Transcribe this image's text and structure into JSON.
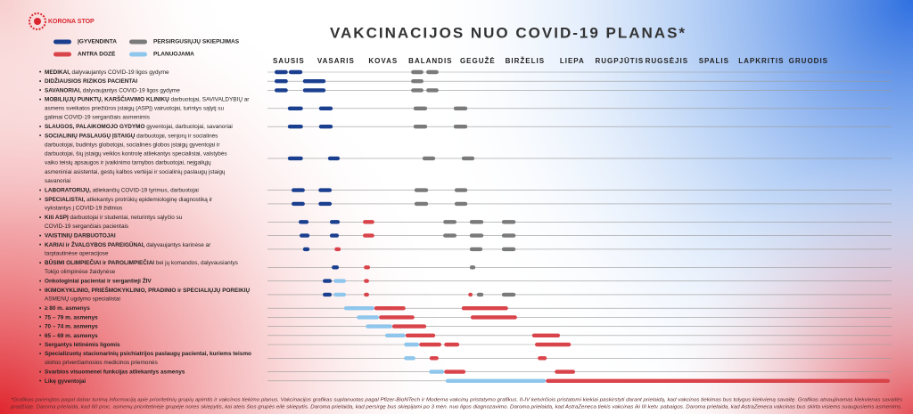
{
  "logo": "KORONA STOP",
  "title": "VAKCINACIJOS NUO COVID-19 PLANAS*",
  "legend": [
    {
      "label": "ĮGYVENDINTA",
      "color": "#1b3f8f"
    },
    {
      "label": "PERSIRGUSIŲJŲ SKIEPIJIMAS",
      "color": "#7a7a7a"
    },
    {
      "label": "ANTRA DOZĖ",
      "color": "#d9434a"
    },
    {
      "label": "PLANUOJAMA",
      "color": "#8ec6ec"
    }
  ],
  "months": [
    "SAUSIS",
    "VASARIS",
    "KOVAS",
    "BALANDIS",
    "GEGUŽĖ",
    "BIRŽELIS",
    "LIEPA",
    "RUGPJŪTIS",
    "RUGSĖJIS",
    "SPALIS",
    "LAPKRITIS",
    "GRUODIS"
  ],
  "rows": [
    {
      "bold": "MEDIKAI,",
      "text": " dalyvaujantys COVID-19 ligos gydyme",
      "bars": [
        {
          "kind": 0,
          "start": 0.15,
          "end": 0.43
        },
        {
          "kind": 0,
          "start": 0.45,
          "end": 0.74
        },
        {
          "kind": 1,
          "start": 3.04,
          "end": 3.3
        },
        {
          "kind": 1,
          "start": 3.36,
          "end": 3.62
        }
      ]
    },
    {
      "bold": "DIDŽIAUSIOS RIZIKOS PACIENTAI",
      "bars": [
        {
          "kind": 0,
          "start": 0.15,
          "end": 0.43
        },
        {
          "kind": 0,
          "start": 0.75,
          "end": 1.23
        },
        {
          "kind": 1,
          "start": 3.04,
          "end": 3.3
        }
      ]
    },
    {
      "bold": "SAVANORIAI,",
      "text": " dalyvaujantys COVID-19 ligos gydyme",
      "bars": [
        {
          "kind": 0,
          "start": 0.15,
          "end": 0.43
        },
        {
          "kind": 0,
          "start": 0.75,
          "end": 1.23
        },
        {
          "kind": 1,
          "start": 3.04,
          "end": 3.3
        },
        {
          "kind": 1,
          "start": 3.36,
          "end": 3.62
        }
      ]
    },
    {
      "bold": "MOBILIŲJŲ PUNKTŲ, KARŠČIAVIMO KLINIKŲ",
      "text": " darbuotojai, SAVIVALDYBIŲ ar",
      "more": [
        "asmens sveikatos priežiūros įstaigų (ASPĮ) vairuotojai, turintys sąlytį su",
        "galimai COVID-19 sergančiais asmenimis"
      ],
      "bars": [
        {
          "kind": 0,
          "start": 0.43,
          "end": 0.75
        },
        {
          "kind": 0,
          "start": 1.09,
          "end": 1.38
        },
        {
          "kind": 1,
          "start": 3.09,
          "end": 3.38
        },
        {
          "kind": 1,
          "start": 3.94,
          "end": 4.23
        }
      ]
    },
    {
      "bold": "SLAUGOS, PALAIKOMOJO GYDYMO",
      "text": " gyventojai, darbuotojai, savanoriai",
      "bars": [
        {
          "kind": 0,
          "start": 0.43,
          "end": 0.75
        },
        {
          "kind": 0,
          "start": 1.09,
          "end": 1.38
        },
        {
          "kind": 1,
          "start": 3.09,
          "end": 3.38
        },
        {
          "kind": 1,
          "start": 3.94,
          "end": 4.23
        }
      ]
    },
    {
      "bold": "SOCIALINIŲ PASLAUGŲ ĮSTAIGŲ",
      "text": " darbuotojai, senjorų ir socialinės",
      "more": [
        "darbuotojai, budintys globotojai, socialinės globos įstaigų gyventojai ir",
        "darbuotojai, šių įstaigų veiklos kontrolę atliekantys specialistai, valstybės",
        "vaiko teisių apsaugos ir įvaikinimo tarnybos darbuotojai, neįgaliųjų",
        "asmeniniai asistentai, gestų kalbos vertėjai ir socialinių paslaugų įstaigų",
        "savanoriai"
      ],
      "bars": [
        {
          "kind": 0,
          "start": 0.43,
          "end": 0.75
        },
        {
          "kind": 0,
          "start": 1.28,
          "end": 1.53
        },
        {
          "kind": 1,
          "start": 3.28,
          "end": 3.55
        },
        {
          "kind": 1,
          "start": 4.11,
          "end": 4.38
        }
      ]
    },
    {
      "bold": "LABORATORIJŲ,",
      "text": " atliekančių COVID-19 tyrimus, darbuotojai",
      "bars": [
        {
          "kind": 0,
          "start": 0.51,
          "end": 0.79
        },
        {
          "kind": 0,
          "start": 1.08,
          "end": 1.36
        },
        {
          "kind": 1,
          "start": 3.11,
          "end": 3.4
        },
        {
          "kind": 1,
          "start": 3.96,
          "end": 4.23
        }
      ]
    },
    {
      "bold": "SPECIALISTAI,",
      "text": " atliekantys protrūkių epidemiologinę diagnostiką ir",
      "more": [
        "vykstantys į COVID-19 židinius"
      ],
      "bars": [
        {
          "kind": 0,
          "start": 0.51,
          "end": 0.79
        },
        {
          "kind": 0,
          "start": 1.08,
          "end": 1.36
        },
        {
          "kind": 1,
          "start": 3.11,
          "end": 3.4
        },
        {
          "kind": 1,
          "start": 3.96,
          "end": 4.23
        }
      ]
    },
    {
      "bold": "Kiti ASPĮ",
      "text": " darbuotojai ir studentai, neturintys sąlyčio su",
      "more": [
        "COVID-19 sergančiais pacientais"
      ],
      "bars": [
        {
          "kind": 0,
          "start": 0.66,
          "end": 0.87
        },
        {
          "kind": 0,
          "start": 1.32,
          "end": 1.53
        },
        {
          "kind": 2,
          "start": 2.02,
          "end": 2.26
        },
        {
          "kind": 1,
          "start": 3.72,
          "end": 4.0
        },
        {
          "kind": 1,
          "start": 4.28,
          "end": 4.57
        },
        {
          "kind": 1,
          "start": 4.96,
          "end": 5.25
        }
      ]
    },
    {
      "bold": "VAISTINIŲ DARBUOTOJAI",
      "bars": [
        {
          "kind": 0,
          "start": 0.68,
          "end": 0.89
        },
        {
          "kind": 0,
          "start": 1.32,
          "end": 1.51
        },
        {
          "kind": 2,
          "start": 2.02,
          "end": 2.26
        },
        {
          "kind": 1,
          "start": 3.72,
          "end": 4.0
        },
        {
          "kind": 1,
          "start": 4.28,
          "end": 4.57
        },
        {
          "kind": 1,
          "start": 4.96,
          "end": 5.25
        }
      ]
    },
    {
      "bold": "KARIAI ir ŽVALGYBOS PAREIGŪNAI,",
      "text": " dalyvaujantys karinėse ar",
      "more": [
        "tarptautinėse operacijose"
      ],
      "bars": [
        {
          "kind": 0,
          "start": 0.75,
          "end": 0.89
        },
        {
          "kind": 2,
          "start": 1.42,
          "end": 1.55
        },
        {
          "kind": 1,
          "start": 4.28,
          "end": 4.55
        },
        {
          "kind": 1,
          "start": 4.96,
          "end": 5.25
        }
      ]
    },
    {
      "bold": "BŪSIMI OLIMPIEČIAI ir PAROLIMPIEČIAI",
      "text": " bei jų komandos, dalyvausiantys",
      "more": [
        "Tokijo olimpinėse žaidynėse"
      ],
      "bars": [
        {
          "kind": 0,
          "start": 1.36,
          "end": 1.51
        },
        {
          "kind": 2,
          "start": 2.04,
          "end": 2.17
        },
        {
          "kind": 1,
          "start": 4.28,
          "end": 4.4
        }
      ]
    },
    {
      "bold": "Onkologiniai pacientai ir sergantieji ŽIV",
      "bars": [
        {
          "kind": 0,
          "start": 1.17,
          "end": 1.36
        },
        {
          "kind": 3,
          "start": 1.4,
          "end": 1.66
        },
        {
          "kind": 2,
          "start": 2.04,
          "end": 2.15
        }
      ]
    },
    {
      "bold": "IKIMOKYKLINIO, PRIEŠMOKYKLINIO, PRADINIO ir SPECIALIŲJŲ POREIKIŲ",
      "more": [
        "ASMENŲ ugdymo specialistai"
      ],
      "bars": [
        {
          "kind": 0,
          "start": 1.17,
          "end": 1.36
        },
        {
          "kind": 3,
          "start": 1.4,
          "end": 1.66
        },
        {
          "kind": 2,
          "start": 2.04,
          "end": 2.15
        },
        {
          "kind": 2,
          "start": 4.25,
          "end": 4.34
        },
        {
          "kind": 1,
          "start": 4.43,
          "end": 4.57
        },
        {
          "kind": 1,
          "start": 4.96,
          "end": 5.25
        }
      ]
    },
    {
      "bold": "≥ 80 m. asmenys",
      "bars": [
        {
          "kind": 3,
          "start": 1.62,
          "end": 2.26
        },
        {
          "kind": 2,
          "start": 2.26,
          "end": 2.92
        },
        {
          "kind": 2,
          "start": 4.11,
          "end": 5.09
        }
      ]
    },
    {
      "bold": "75 – 79 m. asmenys",
      "bars": [
        {
          "kind": 3,
          "start": 1.89,
          "end": 2.36
        },
        {
          "kind": 2,
          "start": 2.36,
          "end": 3.11
        },
        {
          "kind": 2,
          "start": 4.3,
          "end": 5.28
        }
      ]
    },
    {
      "bold": "70 – 74 m. asmenys",
      "bars": [
        {
          "kind": 3,
          "start": 2.08,
          "end": 2.64
        },
        {
          "kind": 2,
          "start": 2.64,
          "end": 3.36
        }
      ]
    },
    {
      "bold": "65 – 69 m. asmenys",
      "bars": [
        {
          "kind": 3,
          "start": 2.49,
          "end": 2.92
        },
        {
          "kind": 2,
          "start": 2.92,
          "end": 3.55
        },
        {
          "kind": 2,
          "start": 5.6,
          "end": 6.19
        }
      ]
    },
    {
      "bold": "Sergantys lėtinėmis ligomis",
      "bars": [
        {
          "kind": 3,
          "start": 2.89,
          "end": 3.21
        },
        {
          "kind": 2,
          "start": 3.21,
          "end": 3.68
        },
        {
          "kind": 2,
          "start": 3.74,
          "end": 4.06
        },
        {
          "kind": 2,
          "start": 5.66,
          "end": 6.42
        }
      ]
    },
    {
      "bold": "Specializuotų stacionarinių psichiatrijos paslaugų pacientai, kuriems teismo",
      "more": [
        "skirtos priverčiamosios medicinos priemonės"
      ],
      "bars": [
        {
          "kind": 3,
          "start": 2.89,
          "end": 3.13
        },
        {
          "kind": 2,
          "start": 3.43,
          "end": 3.62
        },
        {
          "kind": 2,
          "start": 5.72,
          "end": 5.91
        }
      ]
    },
    {
      "bold": "Svarbios visuomenei funkcijas atliekantys asmenys",
      "bars": [
        {
          "kind": 3,
          "start": 3.42,
          "end": 3.74
        },
        {
          "kind": 2,
          "start": 3.74,
          "end": 4.19
        },
        {
          "kind": 2,
          "start": 6.08,
          "end": 6.51
        }
      ]
    },
    {
      "bold": "Likę gyventojai",
      "bars": [
        {
          "kind": 3,
          "start": 3.77,
          "end": 5.89
        },
        {
          "kind": 2,
          "start": 5.89,
          "end": 13.17
        }
      ]
    }
  ],
  "footnote": [
    "*Grafikas parengtas pagal dabar turimą informaciją apie prioritetinių grupių apimtis ir vakcinos tiekimo planus. Vakcinacijos grafikas suplanuotas pagal Pfizer-BioNTech ir Moderna vakcinų pristatymo grafikus. II-IV ketvirčiois pristatomi kiekiai paskirstyti darant prielaidą, kad vakcinos tiekimas bus tolygus kiekvieną savaitę. Grafikas atnaujinamas kiekvienas savaitės",
    "pradžioje. Daroma prielaida, kad 60 proc. asmenų prioritetinėje grupėje nores skiepytis, kai ateis šios grupės eilė skiepytis. Daroma prielaida, kad persirgę bus skiepijami po 3 mėn. nuo ligos diagnozavimo. Daroma prielaida, kad AstraZeneca tiekis vakcinas iki III ketv. pabaigos. Daroma prielaida, kad AstraZeneca vakcinas bus skirta visiems suaugusiems asmenims."
  ]
}
